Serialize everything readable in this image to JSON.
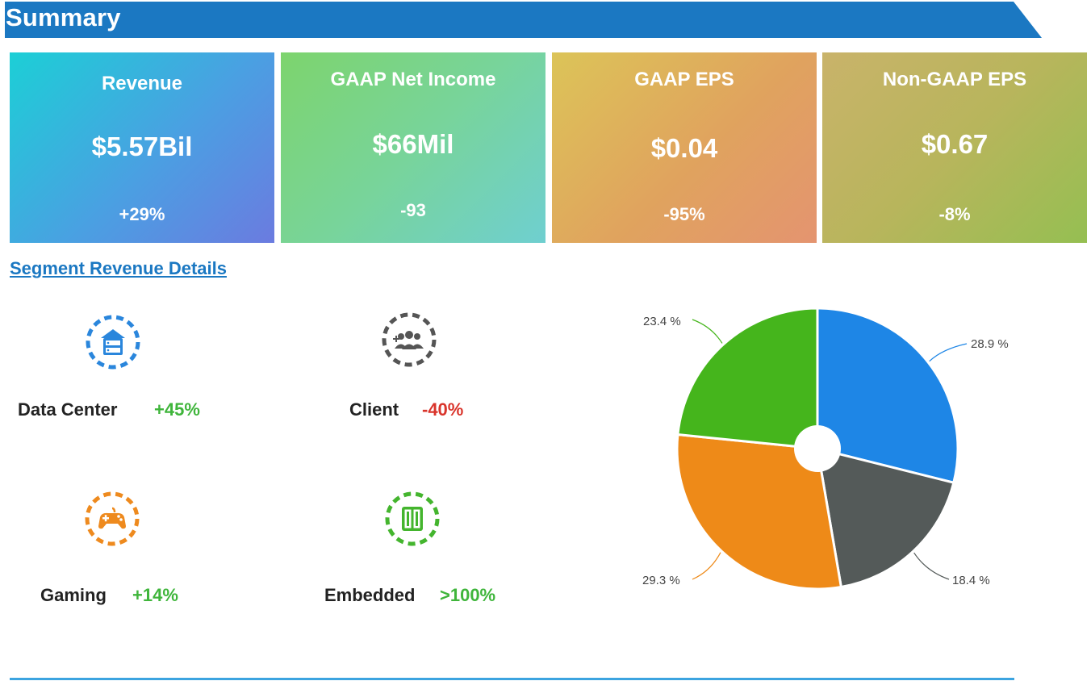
{
  "header": {
    "title": "Summary"
  },
  "cards": [
    {
      "title": "Revenue",
      "value": "$5.57Bil",
      "change": "+29%"
    },
    {
      "title": "GAAP Net Income",
      "value": "$66Mil",
      "change": "-93"
    },
    {
      "title": "GAAP EPS",
      "value": "$0.04",
      "change": "-95%"
    },
    {
      "title": "Non-GAAP EPS",
      "value": "$0.67",
      "change": "-8%"
    }
  ],
  "segment_link": "Segment Revenue Details",
  "segments": [
    {
      "name": "Data Center",
      "change": "+45%",
      "icon": "server-icon",
      "color": "#2a86dc"
    },
    {
      "name": "Client",
      "change": "-40%",
      "icon": "users-icon",
      "color": "#555555"
    },
    {
      "name": "Gaming",
      "change": "+14%",
      "icon": "gamepad-icon",
      "color": "#ee8a1e"
    },
    {
      "name": "Embedded",
      "change": ">100%",
      "icon": "chip-icon",
      "color": "#44b52e"
    }
  ],
  "chart_data": {
    "type": "pie",
    "title": "",
    "slices": [
      {
        "label": "28.9 %",
        "value": 28.9,
        "color": "#1e86e6"
      },
      {
        "label": "18.4 %",
        "value": 18.4,
        "color": "#545a59"
      },
      {
        "label": "29.3 %",
        "value": 29.3,
        "color": "#ee8a18"
      },
      {
        "label": "23.4 %",
        "value": 23.4,
        "color": "#45b51c"
      }
    ],
    "start_angle_deg": 0,
    "donut_hole": true
  }
}
